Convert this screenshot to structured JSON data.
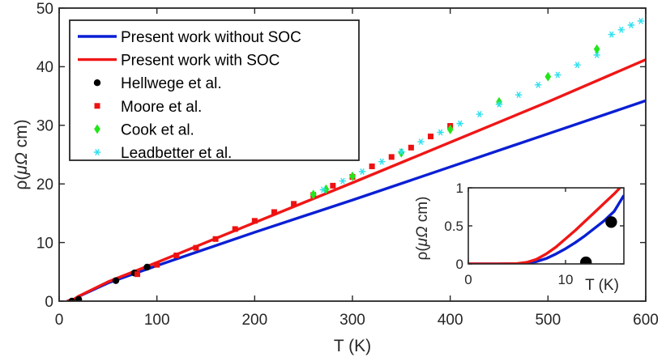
{
  "chart_data": [
    {
      "type": "line",
      "xlabel": "T (K)",
      "ylabel_prefix": "ρ(",
      "ylabel_greek": "μΩ",
      "ylabel_suffix": " cm)",
      "xlim": [
        0,
        600
      ],
      "ylim": [
        0,
        50
      ],
      "xticks": [
        "0",
        "100",
        "200",
        "300",
        "400",
        "500",
        "600"
      ],
      "yticks": [
        "0",
        "10",
        "20",
        "30",
        "40",
        "50"
      ],
      "grid": false,
      "legend_position": "top-left",
      "series": [
        {
          "name": "Present work without SOC",
          "style": "line",
          "color": "#0a1fd4",
          "points": [
            [
              8,
              0
            ],
            [
              15,
              0.3
            ],
            [
              20,
              0.8
            ],
            [
              50,
              3.1
            ],
            [
              100,
              6.05
            ],
            [
              200,
              11.75
            ],
            [
              300,
              17.25
            ],
            [
              400,
              22.9
            ],
            [
              500,
              28.55
            ],
            [
              600,
              34.2
            ]
          ]
        },
        {
          "name": "Present work with SOC",
          "style": "line",
          "color": "#f01616",
          "points": [
            [
              8,
              0
            ],
            [
              15,
              0.3
            ],
            [
              20,
              0.85
            ],
            [
              50,
              3.3
            ],
            [
              100,
              6.6
            ],
            [
              200,
              13.4
            ],
            [
              300,
              20.2
            ],
            [
              400,
              27.1
            ],
            [
              500,
              34.0
            ],
            [
              600,
              41.2
            ]
          ]
        },
        {
          "name": "Hellwege et al.",
          "style": "marker",
          "marker": "circle",
          "color": "#000000",
          "points": [
            [
              13,
              0.0
            ],
            [
              20,
              0.3
            ],
            [
              58,
              3.5
            ],
            [
              77,
              4.8
            ],
            [
              90,
              5.8
            ]
          ]
        },
        {
          "name": "Moore et al.",
          "style": "marker",
          "marker": "square",
          "color": "#ee1111",
          "points": [
            [
              80,
              4.6
            ],
            [
              100,
              6.2
            ],
            [
              120,
              7.8
            ],
            [
              140,
              9.1
            ],
            [
              160,
              10.6
            ],
            [
              180,
              12.3
            ],
            [
              200,
              13.7
            ],
            [
              220,
              15.2
            ],
            [
              240,
              16.6
            ],
            [
              260,
              18.1
            ],
            [
              280,
              19.7
            ],
            [
              300,
              21.2
            ],
            [
              320,
              23.0
            ],
            [
              340,
              24.6
            ],
            [
              360,
              26.2
            ],
            [
              380,
              28.1
            ],
            [
              400,
              29.9
            ]
          ]
        },
        {
          "name": "Cook et al.",
          "style": "marker",
          "marker": "diamond",
          "color": "#22e61a",
          "points": [
            [
              260,
              18.2
            ],
            [
              273,
              19.1
            ],
            [
              300,
              21.3
            ],
            [
              350,
              25.3
            ],
            [
              400,
              29.3
            ],
            [
              450,
              34.0
            ],
            [
              500,
              38.3
            ],
            [
              550,
              43.0
            ]
          ]
        },
        {
          "name": "Leadbetter et al.",
          "style": "marker",
          "marker": "star",
          "color": "#2ee0ee",
          "points": [
            [
              270,
              19.0
            ],
            [
              290,
              20.5
            ],
            [
              310,
              22.1
            ],
            [
              330,
              23.8
            ],
            [
              350,
              25.5
            ],
            [
              370,
              27.2
            ],
            [
              390,
              28.8
            ],
            [
              410,
              30.3
            ],
            [
              430,
              31.9
            ],
            [
              450,
              33.6
            ],
            [
              470,
              35.2
            ],
            [
              490,
              36.9
            ],
            [
              510,
              38.6
            ],
            [
              530,
              40.3
            ],
            [
              550,
              42.0
            ],
            [
              565,
              45.5
            ],
            [
              575,
              46.3
            ],
            [
              585,
              47.1
            ],
            [
              595,
              47.8
            ]
          ]
        }
      ]
    },
    {
      "type": "line",
      "role": "inset",
      "xlabel": "T (K)",
      "ylabel_prefix": "ρ(",
      "ylabel_greek": "μΩ",
      "ylabel_suffix": " cm)",
      "xlim": [
        0,
        16
      ],
      "ylim": [
        0,
        1
      ],
      "xticks": [
        "0",
        "10"
      ],
      "xtick_values": [
        0,
        10
      ],
      "yticks": [
        "0",
        "0.5",
        "1"
      ],
      "ytick_values": [
        0,
        0.5,
        1
      ],
      "series": [
        {
          "name": "Present work without SOC",
          "style": "line",
          "color": "#0a1fd4",
          "points": [
            [
              0,
              0
            ],
            [
              3,
              0
            ],
            [
              5,
              0.003
            ],
            [
              6,
              0.01
            ],
            [
              7,
              0.03
            ],
            [
              8,
              0.07
            ],
            [
              9,
              0.13
            ],
            [
              10,
              0.2
            ],
            [
              11,
              0.28
            ],
            [
              12,
              0.37
            ],
            [
              13,
              0.47
            ],
            [
              14,
              0.57
            ],
            [
              15,
              0.69
            ],
            [
              16,
              0.9
            ]
          ]
        },
        {
          "name": "Present work with SOC",
          "style": "line",
          "color": "#f01616",
          "points": [
            [
              0,
              0
            ],
            [
              3,
              0
            ],
            [
              5,
              0.004
            ],
            [
              6,
              0.02
            ],
            [
              7,
              0.06
            ],
            [
              8,
              0.13
            ],
            [
              9,
              0.22
            ],
            [
              10,
              0.33
            ],
            [
              11,
              0.44
            ],
            [
              12,
              0.56
            ],
            [
              13,
              0.68
            ],
            [
              14,
              0.8
            ],
            [
              15,
              0.92
            ],
            [
              15.6,
              1.0
            ]
          ]
        },
        {
          "name": "Hellwege et al.",
          "style": "marker",
          "marker": "circle",
          "color": "#000000",
          "points": [
            [
              12.1,
              0.02
            ],
            [
              14.7,
              0.55
            ]
          ]
        }
      ]
    }
  ]
}
